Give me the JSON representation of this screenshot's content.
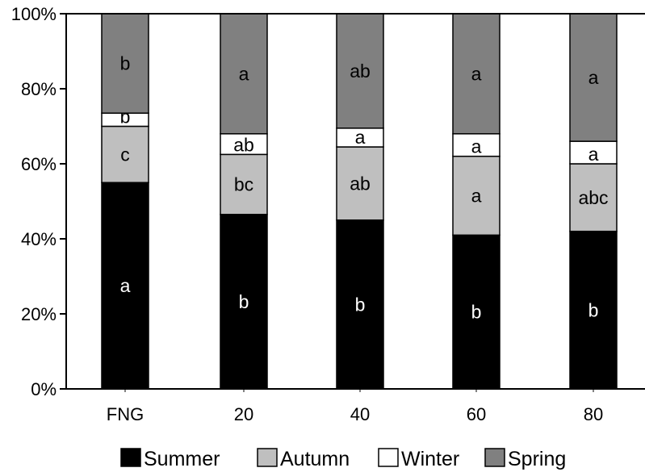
{
  "chart_data": {
    "type": "bar",
    "stacked": true,
    "percent": true,
    "categories": [
      "FNG",
      "20",
      "40",
      "60",
      "80"
    ],
    "ylim": [
      0,
      100
    ],
    "yticks": [
      "0%",
      "20%",
      "40%",
      "60%",
      "80%",
      "100%"
    ],
    "grid": false,
    "legend": "bottom",
    "series": [
      {
        "name": "Summer",
        "color": "#000000",
        "label_color": "#ffffff",
        "values": [
          55,
          46.5,
          45,
          41,
          42
        ],
        "letters": [
          "a",
          "b",
          "b",
          "b",
          "b"
        ]
      },
      {
        "name": "Autumn",
        "color": "#bfbfbf",
        "label_color": "#000000",
        "values": [
          15,
          16,
          19.5,
          21,
          18
        ],
        "letters": [
          "c",
          "bc",
          "ab",
          "a",
          "abc"
        ]
      },
      {
        "name": "Winter",
        "color": "#ffffff",
        "label_color": "#000000",
        "values": [
          3.5,
          5.5,
          5,
          6,
          6
        ],
        "letters": [
          "b",
          "ab",
          "a",
          "a",
          "a"
        ]
      },
      {
        "name": "Spring",
        "color": "#808080",
        "label_color": "#000000",
        "values": [
          26.5,
          32,
          30.5,
          32,
          34
        ],
        "letters": [
          "b",
          "a",
          "ab",
          "a",
          "a"
        ]
      }
    ]
  }
}
